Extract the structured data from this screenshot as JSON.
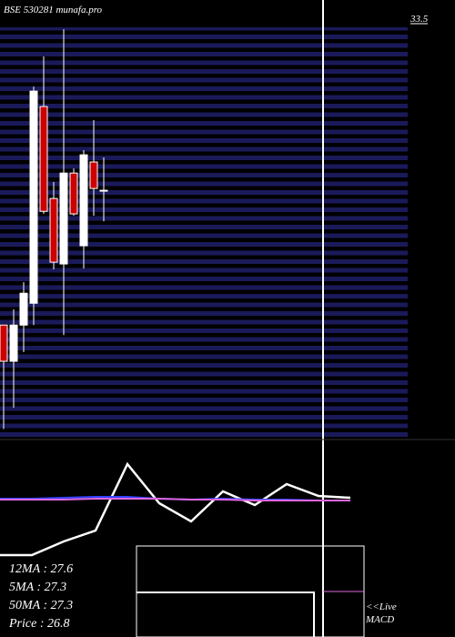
{
  "chart_data": {
    "type": "candlestick",
    "title": "BSE 530281 munafa.pro",
    "ylim": [
      17.2,
      33.5
    ],
    "yticks": [
      33.5
    ],
    "up_color": "#ffffff",
    "down_color": "#cc0000",
    "open": [
      21.55,
      20.14,
      21.55,
      22.4,
      30.06,
      26.48,
      23.93,
      27.47,
      24.64,
      27.9,
      26.8
    ],
    "high": [
      21.55,
      22.16,
      23.22,
      30.84,
      32.01,
      27.12,
      33.07,
      27.65,
      28.36,
      29.53,
      28.08
    ],
    "low": [
      17.5,
      18.33,
      20.5,
      21.55,
      25.88,
      23.72,
      21.16,
      25.81,
      23.75,
      25.81,
      25.59
    ],
    "close": [
      20.14,
      21.55,
      22.79,
      30.66,
      25.98,
      24.0,
      27.47,
      25.88,
      28.18,
      26.87,
      26.8
    ],
    "indicator": {
      "type": "line",
      "series": [
        {
          "color": "#ffffff",
          "values": [
            10,
            10,
            25,
            37,
            110,
            67,
            47,
            80,
            65,
            88,
            75,
            73
          ]
        },
        {
          "color": "#3344ff",
          "values": [
            72,
            72,
            73,
            74,
            74,
            72,
            71,
            72,
            71,
            71,
            70,
            70
          ]
        },
        {
          "color": "#dd66dd",
          "values": [
            71,
            71,
            71,
            72,
            72,
            72,
            71,
            71,
            70,
            70,
            70,
            70
          ]
        }
      ],
      "texts": [
        "12MA : 27.6",
        "5MA : 27.3",
        "50MA : 27.3",
        "Price  : 26.8"
      ],
      "live": "<<Live",
      "label": "MACD"
    }
  }
}
